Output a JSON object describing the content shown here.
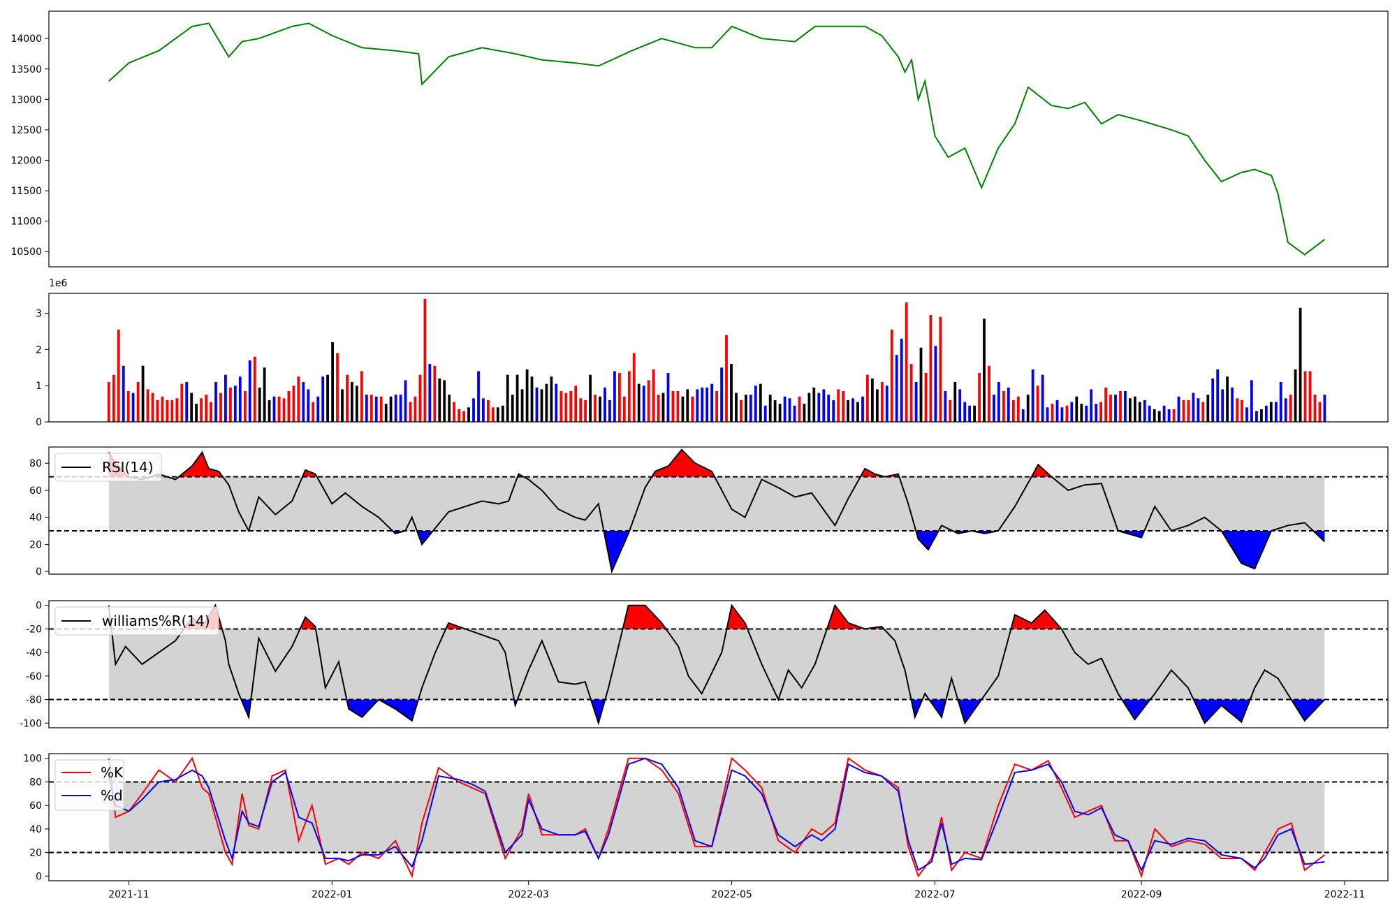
{
  "figure": {
    "x_dates": [
      "2021-10-26",
      "2022-10-26"
    ],
    "x_ticks": [
      {
        "date": "2021-11-01",
        "label": "2021-11"
      },
      {
        "date": "2022-01-01",
        "label": "2022-01"
      },
      {
        "date": "2022-03-01",
        "label": "2022-03"
      },
      {
        "date": "2022-05-01",
        "label": "2022-05"
      },
      {
        "date": "2022-07-01",
        "label": "2022-07"
      },
      {
        "date": "2022-09-01",
        "label": "2022-09"
      },
      {
        "date": "2022-11-01",
        "label": "2022-11"
      }
    ],
    "xlim": [
      "2021-10-08",
      "2022-11-14"
    ]
  },
  "chart_data": [
    {
      "type": "line",
      "panel": "price",
      "color": "#008000",
      "ylim": [
        10250,
        14450
      ],
      "yticks": [
        10500,
        11000,
        11500,
        12000,
        12500,
        13000,
        13500,
        14000
      ],
      "x": [
        "2021-10-26",
        "2021-11-01",
        "2021-11-10",
        "2021-11-20",
        "2021-11-25",
        "2021-12-01",
        "2021-12-05",
        "2021-12-10",
        "2021-12-20",
        "2021-12-25",
        "2022-01-01",
        "2022-01-10",
        "2022-01-20",
        "2022-01-27",
        "2022-01-28",
        "2022-02-05",
        "2022-02-15",
        "2022-02-25",
        "2022-03-05",
        "2022-03-15",
        "2022-03-22",
        "2022-04-01",
        "2022-04-10",
        "2022-04-20",
        "2022-04-25",
        "2022-05-01",
        "2022-05-10",
        "2022-05-20",
        "2022-05-26",
        "2022-06-01",
        "2022-06-10",
        "2022-06-15",
        "2022-06-20",
        "2022-06-22",
        "2022-06-24",
        "2022-06-26",
        "2022-06-28",
        "2022-07-01",
        "2022-07-05",
        "2022-07-10",
        "2022-07-15",
        "2022-07-20",
        "2022-07-25",
        "2022-07-29",
        "2022-08-05",
        "2022-08-10",
        "2022-08-15",
        "2022-08-20",
        "2022-08-25",
        "2022-09-01",
        "2022-09-10",
        "2022-09-15",
        "2022-09-20",
        "2022-09-25",
        "2022-10-01",
        "2022-10-05",
        "2022-10-10",
        "2022-10-12",
        "2022-10-15",
        "2022-10-20",
        "2022-10-26"
      ],
      "y": [
        13300,
        13600,
        13800,
        14200,
        14250,
        13700,
        13950,
        14000,
        14200,
        14250,
        14050,
        13850,
        13800,
        13750,
        13250,
        13700,
        13850,
        13750,
        13650,
        13600,
        13550,
        13800,
        14000,
        13850,
        13850,
        14200,
        14000,
        13950,
        14200,
        14200,
        14200,
        14050,
        13700,
        13450,
        13650,
        13000,
        13300,
        12400,
        12050,
        12200,
        11550,
        12200,
        12600,
        13200,
        12900,
        12850,
        12950,
        12600,
        12750,
        12650,
        12500,
        12400,
        12000,
        11650,
        11800,
        11850,
        11750,
        11450,
        10650,
        10450,
        10700
      ]
    },
    {
      "type": "bar",
      "panel": "volume",
      "multiplier_label": "1e6",
      "ylim": [
        0,
        3.55
      ],
      "yticks": [
        0,
        1,
        2,
        3
      ],
      "colors": {
        "up": "#ff0000",
        "down": "#0000ff",
        "flat": "#000000"
      },
      "values": [
        1.1,
        1.3,
        2.55,
        1.55,
        0.85,
        0.8,
        1.1,
        1.55,
        0.9,
        0.8,
        0.6,
        0.7,
        0.6,
        0.6,
        0.65,
        1.05,
        1.1,
        0.8,
        0.5,
        0.65,
        0.75,
        0.55,
        1.1,
        0.8,
        1.3,
        0.95,
        1.0,
        1.25,
        0.85,
        1.7,
        1.8,
        0.95,
        1.5,
        0.6,
        0.7,
        0.7,
        0.65,
        0.85,
        1.0,
        1.25,
        1.1,
        0.9,
        0.55,
        0.7,
        1.25,
        1.3,
        2.2,
        1.9,
        0.9,
        1.3,
        1.1,
        1.0,
        1.4,
        0.75,
        0.75,
        0.7,
        0.7,
        0.5,
        0.7,
        0.75,
        0.75,
        1.15,
        0.55,
        0.7,
        1.3,
        3.4,
        1.6,
        1.55,
        1.2,
        1.15,
        0.75,
        0.55,
        0.35,
        0.3,
        0.4,
        0.65,
        1.4,
        0.65,
        0.6,
        0.4,
        0.4,
        0.45,
        1.3,
        0.75,
        1.3,
        0.9,
        1.45,
        1.25,
        0.95,
        0.9,
        1.05,
        1.25,
        1.05,
        0.85,
        0.8,
        0.85,
        1.0,
        0.65,
        0.6,
        1.3,
        0.75,
        0.7,
        0.95,
        0.6,
        1.4,
        1.35,
        0.7,
        1.4,
        1.9,
        1.05,
        1.0,
        1.15,
        1.45,
        0.75,
        0.8,
        1.35,
        0.85,
        0.85,
        0.7,
        0.9,
        0.7,
        0.9,
        0.95,
        0.95,
        1.05,
        0.85,
        1.5,
        2.4,
        1.6,
        0.8,
        0.6,
        0.75,
        0.75,
        1.0,
        1.05,
        0.45,
        0.75,
        0.6,
        0.5,
        0.7,
        0.65,
        0.45,
        0.7,
        0.5,
        0.8,
        0.95,
        0.8,
        0.9,
        0.75,
        0.6,
        0.9,
        0.85,
        0.6,
        0.65,
        0.55,
        0.7,
        1.3,
        1.2,
        0.9,
        1.1,
        1.0,
        2.55,
        1.85,
        2.3,
        3.3,
        1.6,
        1.1,
        2.05,
        1.35,
        2.95,
        2.1,
        2.9,
        0.85,
        0.6,
        1.1,
        0.9,
        0.55,
        0.45,
        0.45,
        1.35,
        2.85,
        1.55,
        0.75,
        1.1,
        0.85,
        0.95,
        0.6,
        0.7,
        0.35,
        0.75,
        1.45,
        1.0,
        1.3,
        0.4,
        0.5,
        0.6,
        0.4,
        0.45,
        0.55,
        0.7,
        0.5,
        0.45,
        0.9,
        0.5,
        0.55,
        0.95,
        0.75,
        0.75,
        0.85,
        0.85,
        0.65,
        0.7,
        0.55,
        0.6,
        0.45,
        0.35,
        0.3,
        0.45,
        0.35,
        0.35,
        0.7,
        0.6,
        0.6,
        0.8,
        0.65,
        0.55,
        0.75,
        1.2,
        1.45,
        0.9,
        1.25,
        0.95,
        0.65,
        0.6,
        0.4,
        1.15,
        0.3,
        0.35,
        0.45,
        0.55,
        0.55,
        1.1,
        0.65,
        0.75,
        1.45,
        3.15,
        1.4,
        1.4,
        0.75,
        0.55,
        0.75
      ],
      "color_codes": "rrrbrbrkrrrrrrrrbkkrrrbrbrbbrbrkkkbrrrrrbbrbbkkrkrkkrbrbrkkbbbrrrrbrkkkrrrkbbbrrkkkkkkkkbkkkbrrrrrrkrkbbbrrrrkbrrrkbrrkkrbbbbrbrkkrkbbkbkkkbbbrkkkbbbbrrkbkbrkkrbrbbrrbkrrbrbrkbbbkrkrbbrbrrbkbrbbrbbrbkkbbbrrrbrbkkkbbkkbbrbrrbbrkbbbkbrrbbbkbkbbbrkkrrrrbrrrbbbkbkbbbrbbrrbbrk"
    },
    {
      "type": "line",
      "panel": "rsi",
      "series": [
        {
          "name": "RSI(14)",
          "color": "#000000"
        }
      ],
      "ylim": [
        -2,
        92
      ],
      "yticks": [
        0,
        20,
        40,
        60,
        80
      ],
      "thresholds": [
        70,
        30
      ],
      "fill_colors": {
        "above": "#ff0000",
        "below": "#0000ff",
        "band": "#d3d3d3"
      },
      "x": [
        "2021-10-26",
        "2021-10-28",
        "2021-11-01",
        "2021-11-05",
        "2021-11-10",
        "2021-11-15",
        "2021-11-20",
        "2021-11-23",
        "2021-11-25",
        "2021-11-28",
        "2021-12-01",
        "2021-12-04",
        "2021-12-07",
        "2021-12-10",
        "2021-12-15",
        "2021-12-20",
        "2021-12-24",
        "2021-12-27",
        "2022-01-01",
        "2022-01-05",
        "2022-01-10",
        "2022-01-15",
        "2022-01-20",
        "2022-01-23",
        "2022-01-25",
        "2022-01-28",
        "2022-02-05",
        "2022-02-15",
        "2022-02-20",
        "2022-02-23",
        "2022-02-26",
        "2022-03-01",
        "2022-03-05",
        "2022-03-10",
        "2022-03-15",
        "2022-03-18",
        "2022-03-22",
        "2022-03-26",
        "2022-03-31",
        "2022-04-05",
        "2022-04-08",
        "2022-04-12",
        "2022-04-16",
        "2022-04-20",
        "2022-04-25",
        "2022-05-01",
        "2022-05-05",
        "2022-05-10",
        "2022-05-15",
        "2022-05-20",
        "2022-05-25",
        "2022-06-01",
        "2022-06-05",
        "2022-06-10",
        "2022-06-13",
        "2022-06-16",
        "2022-06-20",
        "2022-06-23",
        "2022-06-26",
        "2022-06-29",
        "2022-07-03",
        "2022-07-08",
        "2022-07-12",
        "2022-07-16",
        "2022-07-20",
        "2022-07-25",
        "2022-07-30",
        "2022-08-01",
        "2022-08-05",
        "2022-08-10",
        "2022-08-15",
        "2022-08-20",
        "2022-08-25",
        "2022-09-01",
        "2022-09-05",
        "2022-09-10",
        "2022-09-15",
        "2022-09-20",
        "2022-09-25",
        "2022-10-01",
        "2022-10-05",
        "2022-10-10",
        "2022-10-15",
        "2022-10-20",
        "2022-10-26"
      ],
      "y": [
        88,
        80,
        70,
        68,
        72,
        68,
        78,
        88,
        76,
        74,
        64,
        44,
        30,
        55,
        42,
        52,
        75,
        72,
        50,
        58,
        48,
        40,
        28,
        30,
        40,
        20,
        44,
        52,
        50,
        52,
        72,
        68,
        60,
        46,
        40,
        38,
        50,
        0,
        28,
        62,
        74,
        78,
        90,
        80,
        74,
        46,
        40,
        68,
        62,
        55,
        58,
        34,
        54,
        76,
        72,
        70,
        72,
        50,
        24,
        16,
        34,
        28,
        30,
        28,
        30,
        48,
        70,
        79,
        70,
        60,
        64,
        65,
        30,
        25,
        48,
        30,
        34,
        40,
        30,
        6,
        2,
        30,
        34,
        36,
        22
      ]
    },
    {
      "type": "line",
      "panel": "williams",
      "series": [
        {
          "name": "williams%R(14)",
          "color": "#000000"
        }
      ],
      "ylim": [
        -104,
        4
      ],
      "yticks": [
        0,
        -20,
        -40,
        -60,
        -80,
        -100
      ],
      "thresholds": [
        -20,
        -80
      ],
      "fill_colors": {
        "above": "#ff0000",
        "below": "#0000ff",
        "band": "#d3d3d3"
      },
      "x": [
        "2021-10-26",
        "2021-10-28",
        "2021-10-31",
        "2021-11-05",
        "2021-11-10",
        "2021-11-15",
        "2021-11-20",
        "2021-11-23",
        "2021-11-27",
        "2021-11-30",
        "2021-12-01",
        "2021-12-04",
        "2021-12-07",
        "2021-12-10",
        "2021-12-15",
        "2021-12-20",
        "2021-12-24",
        "2021-12-27",
        "2021-12-30",
        "2022-01-03",
        "2022-01-06",
        "2022-01-10",
        "2022-01-15",
        "2022-01-20",
        "2022-01-25",
        "2022-01-28",
        "2022-02-01",
        "2022-02-05",
        "2022-02-10",
        "2022-02-15",
        "2022-02-20",
        "2022-02-22",
        "2022-02-25",
        "2022-03-01",
        "2022-03-05",
        "2022-03-10",
        "2022-03-15",
        "2022-03-18",
        "2022-03-22",
        "2022-03-25",
        "2022-03-31",
        "2022-04-05",
        "2022-04-10",
        "2022-04-15",
        "2022-04-18",
        "2022-04-22",
        "2022-04-28",
        "2022-05-01",
        "2022-05-05",
        "2022-05-10",
        "2022-05-15",
        "2022-05-18",
        "2022-05-22",
        "2022-05-26",
        "2022-06-01",
        "2022-06-05",
        "2022-06-10",
        "2022-06-15",
        "2022-06-19",
        "2022-06-22",
        "2022-06-25",
        "2022-06-28",
        "2022-07-03",
        "2022-07-06",
        "2022-07-10",
        "2022-07-15",
        "2022-07-20",
        "2022-07-25",
        "2022-07-30",
        "2022-08-03",
        "2022-08-08",
        "2022-08-12",
        "2022-08-16",
        "2022-08-20",
        "2022-08-25",
        "2022-08-30",
        "2022-09-05",
        "2022-09-10",
        "2022-09-15",
        "2022-09-20",
        "2022-09-25",
        "2022-10-01",
        "2022-10-05",
        "2022-10-08",
        "2022-10-12",
        "2022-10-16",
        "2022-10-20",
        "2022-10-26"
      ],
      "y": [
        0,
        -50,
        -35,
        -50,
        -40,
        -30,
        -10,
        -18,
        0,
        -30,
        -50,
        -75,
        -95,
        -28,
        -56,
        -35,
        -10,
        -18,
        -70,
        -48,
        -88,
        -95,
        -80,
        -88,
        -98,
        -70,
        -40,
        -15,
        -20,
        -25,
        -30,
        -40,
        -85,
        -55,
        -30,
        -65,
        -67,
        -65,
        -100,
        -70,
        0,
        0,
        -15,
        -35,
        -60,
        -75,
        -40,
        0,
        -15,
        -50,
        -80,
        -55,
        -70,
        -50,
        0,
        -15,
        -20,
        -18,
        -30,
        -55,
        -95,
        -75,
        -95,
        -62,
        -100,
        -80,
        -60,
        -8,
        -15,
        -4,
        -20,
        -40,
        -50,
        -45,
        -75,
        -97,
        -75,
        -55,
        -70,
        -100,
        -85,
        -99,
        -70,
        -55,
        -62,
        -80,
        -98,
        -80
      ]
    },
    {
      "type": "line",
      "panel": "stochastic",
      "series": [
        {
          "name": "%K",
          "color": "#ff0000"
        },
        {
          "name": "%d",
          "color": "#0000ff"
        }
      ],
      "ylim": [
        -4,
        104
      ],
      "yticks": [
        0,
        20,
        40,
        60,
        80,
        100
      ],
      "band": [
        20,
        80
      ],
      "band_color": "#d3d3d3",
      "x": [
        "2021-10-26",
        "2021-10-28",
        "2021-11-01",
        "2021-11-05",
        "2021-11-10",
        "2021-11-15",
        "2021-11-20",
        "2021-11-23",
        "2021-11-25",
        "2021-11-30",
        "2021-12-02",
        "2021-12-05",
        "2021-12-07",
        "2021-12-10",
        "2021-12-14",
        "2021-12-18",
        "2021-12-22",
        "2021-12-26",
        "2021-12-30",
        "2022-01-03",
        "2022-01-06",
        "2022-01-10",
        "2022-01-15",
        "2022-01-20",
        "2022-01-25",
        "2022-01-28",
        "2022-02-02",
        "2022-02-08",
        "2022-02-12",
        "2022-02-16",
        "2022-02-22",
        "2022-02-27",
        "2022-03-01",
        "2022-03-05",
        "2022-03-10",
        "2022-03-15",
        "2022-03-18",
        "2022-03-22",
        "2022-03-25",
        "2022-03-31",
        "2022-04-05",
        "2022-04-10",
        "2022-04-15",
        "2022-04-20",
        "2022-04-25",
        "2022-05-01",
        "2022-05-05",
        "2022-05-10",
        "2022-05-15",
        "2022-05-20",
        "2022-05-25",
        "2022-05-28",
        "2022-06-01",
        "2022-06-05",
        "2022-06-10",
        "2022-06-15",
        "2022-06-20",
        "2022-06-23",
        "2022-06-26",
        "2022-06-30",
        "2022-07-03",
        "2022-07-06",
        "2022-07-10",
        "2022-07-15",
        "2022-07-20",
        "2022-07-25",
        "2022-07-30",
        "2022-08-04",
        "2022-08-08",
        "2022-08-12",
        "2022-08-16",
        "2022-08-20",
        "2022-08-24",
        "2022-08-28",
        "2022-09-01",
        "2022-09-05",
        "2022-09-10",
        "2022-09-15",
        "2022-09-20",
        "2022-09-25",
        "2022-10-01",
        "2022-10-05",
        "2022-10-08",
        "2022-10-12",
        "2022-10-16",
        "2022-10-20",
        "2022-10-26"
      ],
      "k": [
        100,
        50,
        55,
        70,
        90,
        80,
        100,
        75,
        70,
        20,
        10,
        70,
        43,
        40,
        85,
        90,
        30,
        60,
        10,
        15,
        10,
        20,
        15,
        30,
        0,
        45,
        92,
        80,
        75,
        70,
        15,
        40,
        70,
        35,
        35,
        35,
        40,
        15,
        40,
        100,
        100,
        90,
        70,
        25,
        25,
        100,
        90,
        75,
        30,
        20,
        40,
        35,
        45,
        100,
        90,
        85,
        75,
        25,
        0,
        15,
        50,
        5,
        20,
        15,
        60,
        95,
        90,
        98,
        75,
        50,
        55,
        60,
        30,
        30,
        0,
        40,
        25,
        30,
        27,
        15,
        15,
        5,
        20,
        40,
        45,
        5,
        18
      ],
      "d": [
        85,
        60,
        55,
        65,
        80,
        82,
        90,
        85,
        75,
        30,
        15,
        55,
        45,
        42,
        80,
        88,
        50,
        45,
        15,
        15,
        13,
        18,
        18,
        25,
        8,
        30,
        85,
        82,
        78,
        72,
        20,
        35,
        65,
        40,
        35,
        35,
        38,
        15,
        35,
        95,
        100,
        95,
        75,
        30,
        25,
        90,
        85,
        70,
        35,
        25,
        35,
        30,
        40,
        95,
        88,
        85,
        72,
        30,
        5,
        12,
        45,
        10,
        15,
        14,
        50,
        88,
        90,
        95,
        80,
        55,
        52,
        58,
        35,
        30,
        5,
        30,
        27,
        32,
        30,
        18,
        15,
        7,
        15,
        35,
        40,
        10,
        12
      ]
    }
  ],
  "legends": {
    "rsi": "RSI(14)",
    "williams": "williams%R(14)",
    "k": "%K",
    "d": "%d"
  }
}
